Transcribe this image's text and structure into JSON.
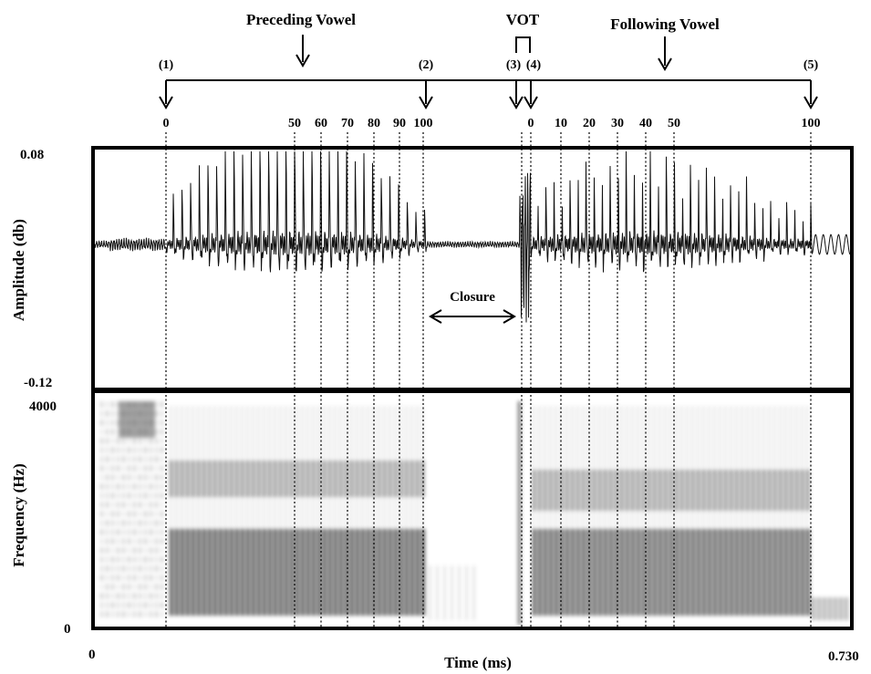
{
  "annotations": {
    "preceding_vowel": "Preceding Vowel",
    "vot": "VOT",
    "following_vowel": "Following Vowel",
    "closure": "Closure"
  },
  "events": [
    {
      "label": "(1)"
    },
    {
      "label": "(2)"
    },
    {
      "label": "(3)"
    },
    {
      "label": "(4)"
    },
    {
      "label": "(5)"
    }
  ],
  "preceding_percent_ticks": [
    "0",
    "50",
    "60",
    "70",
    "80",
    "90",
    "100"
  ],
  "following_percent_ticks": [
    "0",
    "10",
    "20",
    "30",
    "40",
    "50",
    "100"
  ],
  "waveform_panel": {
    "ylabel": "Amplitude (db)",
    "ymax": "0.08",
    "ymin": "-0.12"
  },
  "spectrogram_panel": {
    "ylabel": "Frequency (Hz)",
    "ymax": "4000",
    "ymin": "0"
  },
  "time_axis": {
    "xlabel": "Time (ms)",
    "start": "0",
    "end": "0.730"
  }
}
